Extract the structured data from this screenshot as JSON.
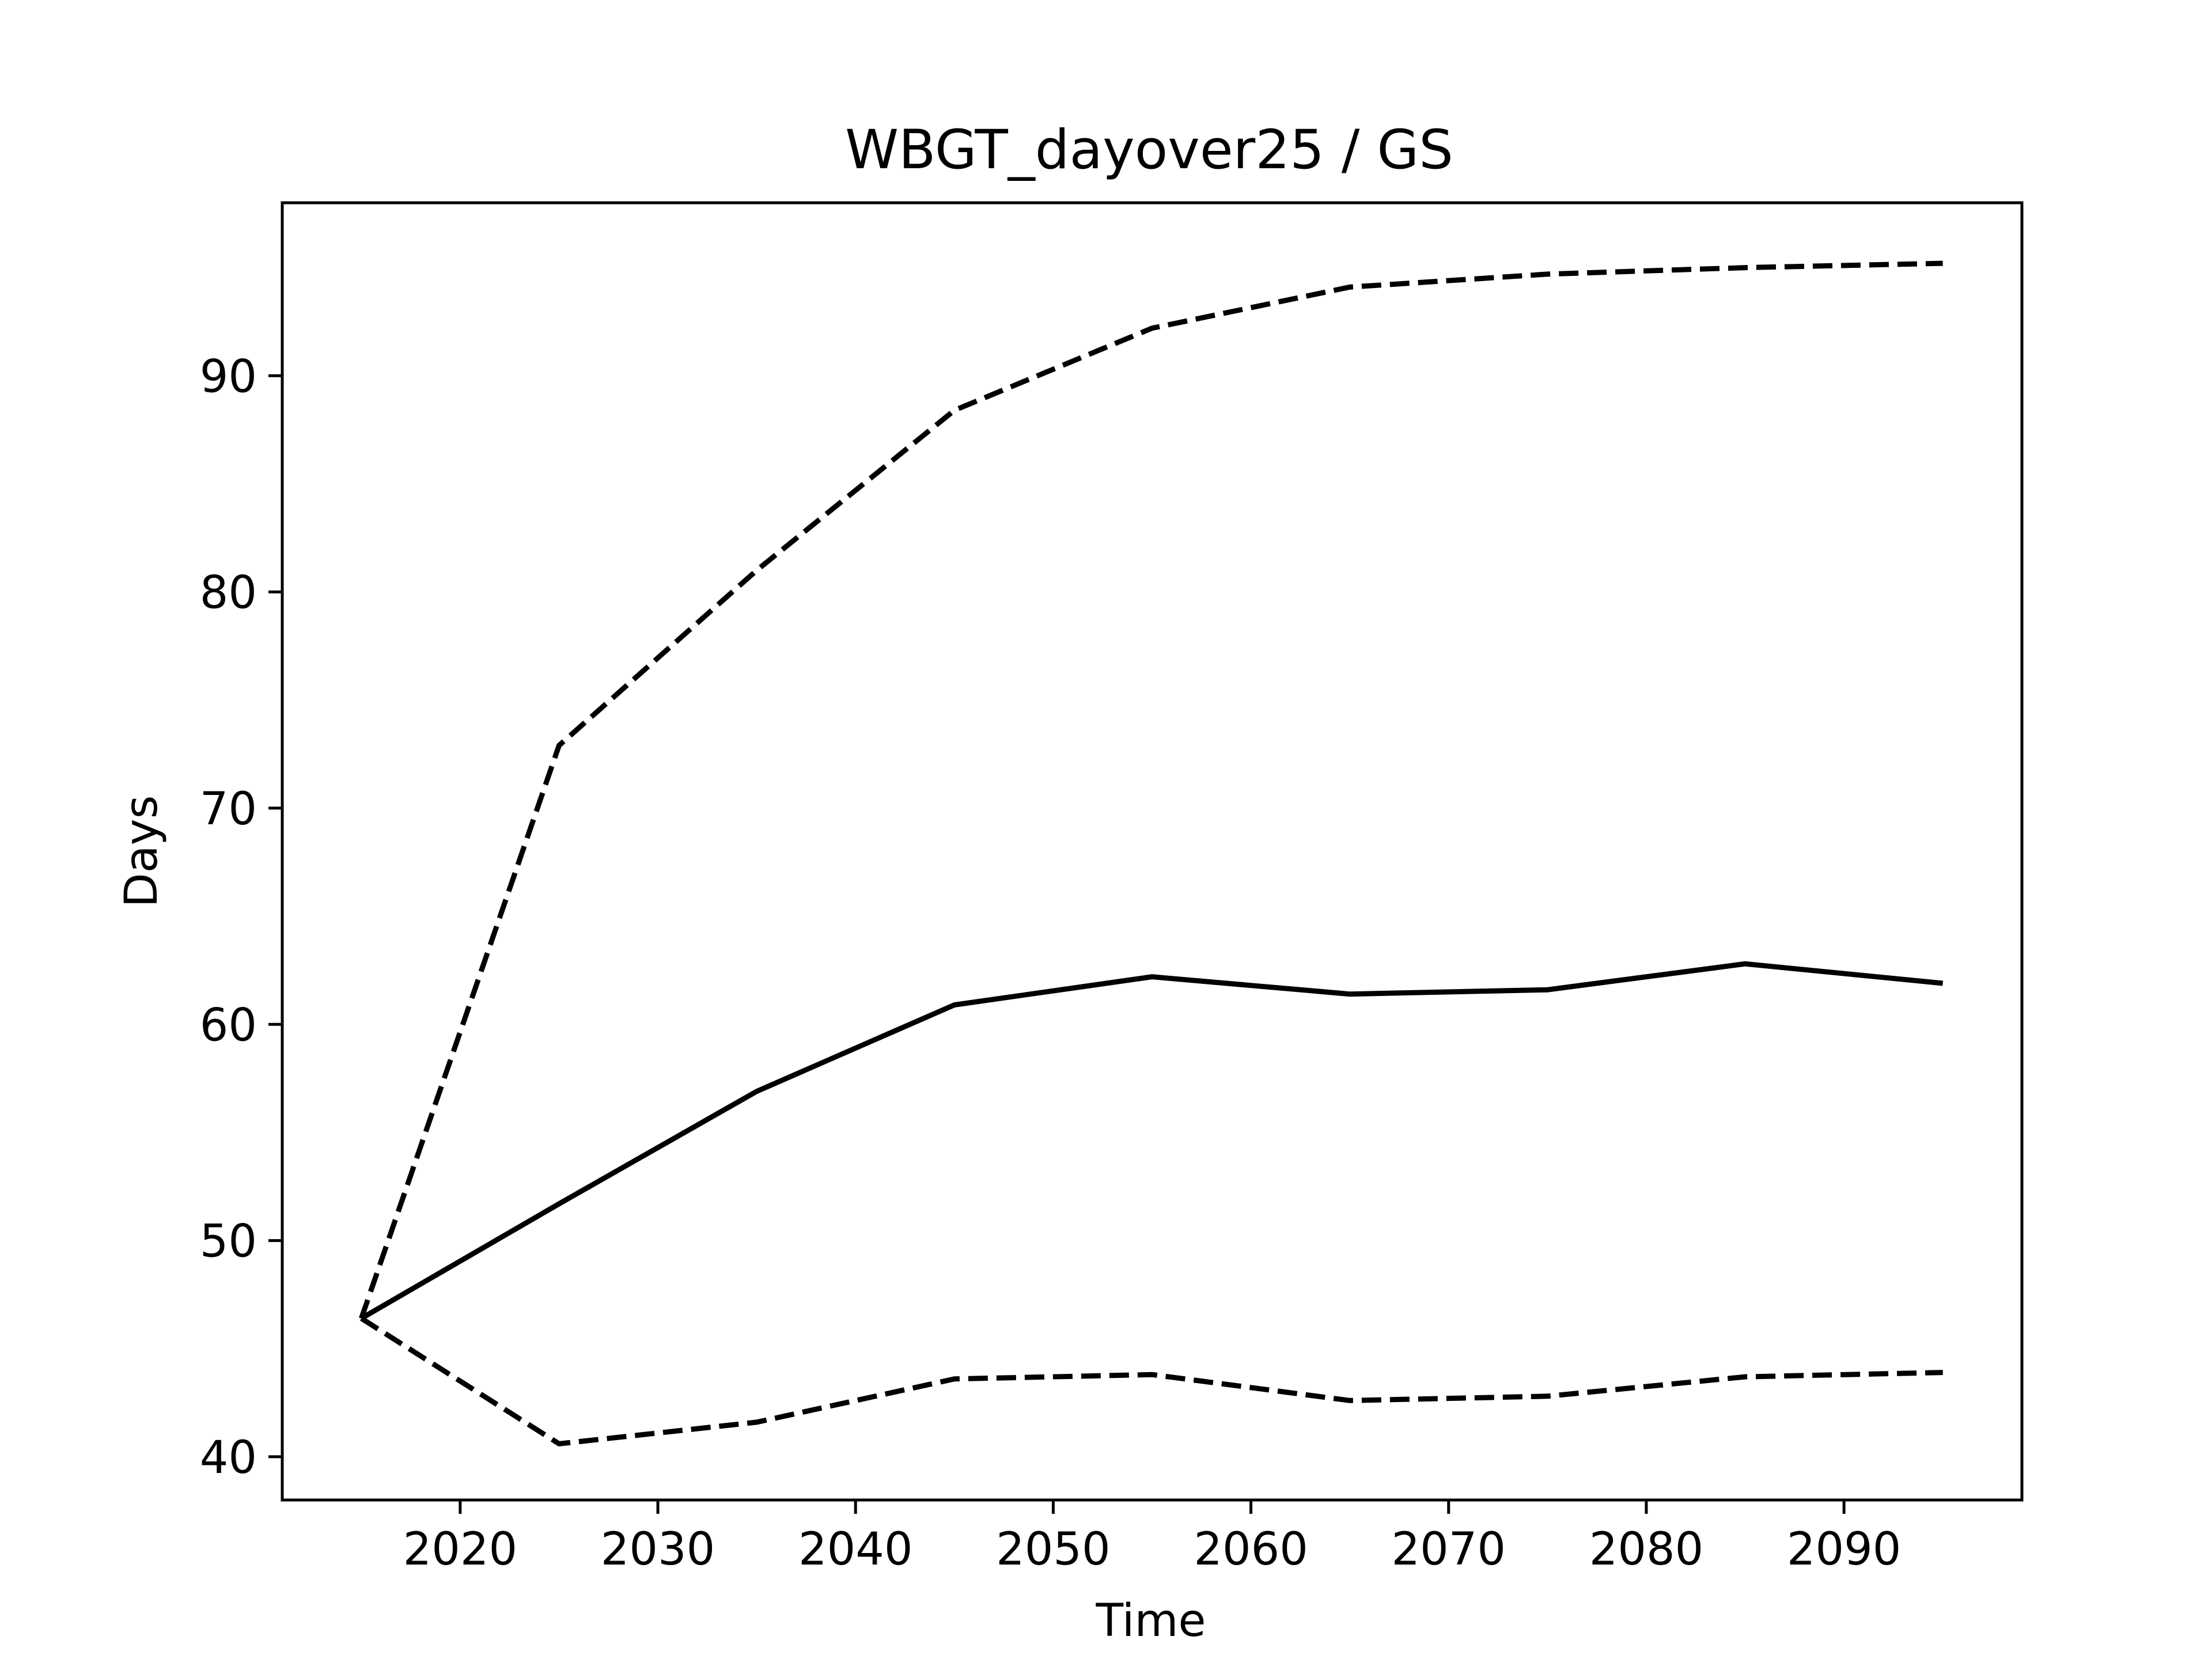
{
  "chart_data": {
    "type": "line",
    "title": "WBGT_dayover25 / GS",
    "xlabel": "Time",
    "ylabel": "Days",
    "xlim": [
      2011,
      2099
    ],
    "ylim": [
      38,
      98
    ],
    "xticks": [
      2020,
      2030,
      2040,
      2050,
      2060,
      2070,
      2080,
      2090
    ],
    "yticks": [
      40,
      50,
      60,
      70,
      80,
      90
    ],
    "grid": false,
    "legend": "none",
    "x": [
      2015,
      2025,
      2035,
      2045,
      2055,
      2065,
      2075,
      2085,
      2095
    ],
    "series": [
      {
        "style": "dashed",
        "color": "#000000",
        "values": [
          46.4,
          72.9,
          81.0,
          88.4,
          92.2,
          94.1,
          94.7,
          95.0,
          95.2
        ]
      },
      {
        "style": "solid",
        "color": "#000000",
        "values": [
          46.4,
          51.7,
          56.9,
          60.9,
          62.2,
          61.4,
          61.6,
          62.8,
          61.9
        ]
      },
      {
        "style": "dashed",
        "color": "#000000",
        "values": [
          46.4,
          40.6,
          41.6,
          43.6,
          43.8,
          42.6,
          42.8,
          43.7,
          43.9
        ]
      }
    ]
  }
}
